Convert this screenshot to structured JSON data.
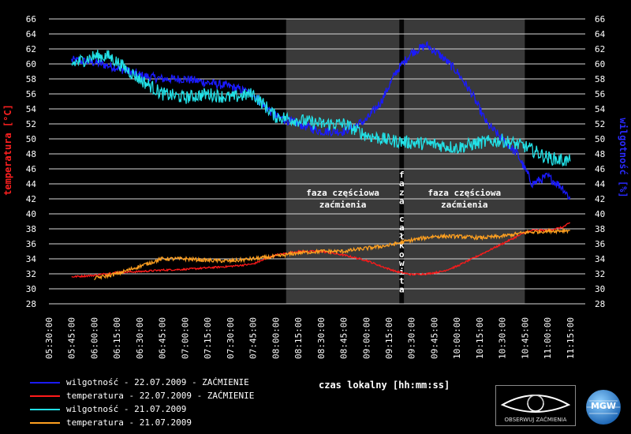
{
  "chart_data": {
    "type": "line",
    "xlabel": "czas lokalny [hh:mm:ss]",
    "ylabel_left": "temperatura [°C]",
    "ylabel_right": "wilgotność [%]",
    "ylim": [
      28,
      66
    ],
    "yticks": [
      28,
      30,
      32,
      34,
      36,
      38,
      40,
      42,
      44,
      46,
      48,
      50,
      52,
      54,
      56,
      58,
      60,
      62,
      64,
      66
    ],
    "xlim": [
      "05:30:00",
      "11:25:00"
    ],
    "xticks": [
      "05:30:00",
      "05:45:00",
      "06:00:00",
      "06:15:00",
      "06:30:00",
      "06:45:00",
      "07:00:00",
      "07:15:00",
      "07:30:00",
      "07:45:00",
      "08:00:00",
      "08:15:00",
      "08:30:00",
      "08:45:00",
      "09:00:00",
      "09:15:00",
      "09:30:00",
      "09:45:00",
      "10:00:00",
      "10:15:00",
      "10:30:00",
      "10:45:00",
      "11:00:00",
      "11:15:00"
    ],
    "grid": true,
    "phases": [
      {
        "label_line1": "faza częściowa",
        "label_line2": "zaćmienia",
        "start": "08:07:00",
        "end": "09:22:00"
      },
      {
        "label": "faza całkowita",
        "start": "09:22:00",
        "end": "09:25:00"
      },
      {
        "label_line1": "faza częściowa",
        "label_line2": "zaćmienia",
        "start": "09:25:00",
        "end": "10:45:00"
      }
    ],
    "series": [
      {
        "name": "wilgotność - 22.07.2009 - ZAĆMIENIE",
        "color": "#1a1aff",
        "x": [
          "05:45",
          "06:00",
          "06:15",
          "06:30",
          "06:45",
          "07:00",
          "07:15",
          "07:30",
          "07:45",
          "08:00",
          "08:15",
          "08:30",
          "08:45",
          "09:00",
          "09:10",
          "09:20",
          "09:30",
          "09:40",
          "09:50",
          "10:00",
          "10:10",
          "10:20",
          "10:30",
          "10:40",
          "10:45",
          "10:50",
          "11:00",
          "11:10",
          "11:15"
        ],
        "values": [
          60.5,
          60.2,
          59.5,
          58.5,
          58,
          58,
          57.5,
          57,
          56,
          53,
          52,
          51,
          51,
          52.5,
          55,
          59,
          61.5,
          62.5,
          61,
          59,
          56,
          52,
          50,
          48,
          46,
          44,
          45,
          43.5,
          42
        ]
      },
      {
        "name": "temperatura - 22.07.2009 - ZAĆMIENIE",
        "color": "#ff1a1a",
        "x": [
          "05:45",
          "06:00",
          "06:15",
          "06:30",
          "06:45",
          "07:00",
          "07:15",
          "07:30",
          "07:45",
          "08:00",
          "08:15",
          "08:30",
          "08:45",
          "09:00",
          "09:10",
          "09:20",
          "09:30",
          "09:40",
          "09:50",
          "10:00",
          "10:10",
          "10:20",
          "10:30",
          "10:40",
          "10:45",
          "10:50",
          "11:00",
          "11:10",
          "11:15"
        ],
        "values": [
          31.6,
          31.8,
          32.2,
          32.3,
          32.5,
          32.6,
          32.8,
          33,
          33.3,
          34.5,
          35,
          35,
          34.5,
          33.8,
          33,
          32.3,
          31.9,
          32,
          32.3,
          33,
          34,
          35,
          36,
          37,
          37.5,
          37.8,
          37.8,
          38.2,
          38.8
        ]
      },
      {
        "name": "wilgotność - 21.07.2009",
        "color": "#22e0e6",
        "x": [
          "05:45",
          "06:00",
          "06:10",
          "06:20",
          "06:30",
          "06:45",
          "07:00",
          "07:15",
          "07:30",
          "07:45",
          "08:00",
          "08:15",
          "08:30",
          "08:45",
          "09:00",
          "09:15",
          "09:30",
          "09:45",
          "10:00",
          "10:15",
          "10:30",
          "10:45",
          "11:00",
          "11:15"
        ],
        "values": [
          60,
          61,
          61,
          59.5,
          58,
          56,
          55.5,
          56,
          55.5,
          56,
          53,
          52.5,
          52,
          52,
          50.5,
          49.8,
          49.5,
          49.3,
          48.8,
          49.5,
          49.8,
          49,
          47.5,
          47
        ]
      },
      {
        "name": "temperatura - 21.07.2009",
        "color": "#ffa020",
        "x": [
          "06:00",
          "06:15",
          "06:30",
          "06:45",
          "07:00",
          "07:15",
          "07:30",
          "07:45",
          "08:00",
          "08:15",
          "08:30",
          "08:45",
          "09:00",
          "09:15",
          "09:30",
          "09:45",
          "10:00",
          "10:15",
          "10:30",
          "10:45",
          "11:00",
          "11:15"
        ],
        "values": [
          31.4,
          32,
          33,
          34,
          34,
          33.8,
          33.7,
          34,
          34.3,
          34.8,
          35,
          35,
          35.4,
          35.8,
          36.5,
          37,
          37,
          36.8,
          37,
          37.5,
          37.7,
          37.8
        ]
      }
    ]
  },
  "logos": {
    "obserwuj_text": "OBSERWUJ ZAĆMIENIA",
    "mgw_text": "MGW"
  }
}
